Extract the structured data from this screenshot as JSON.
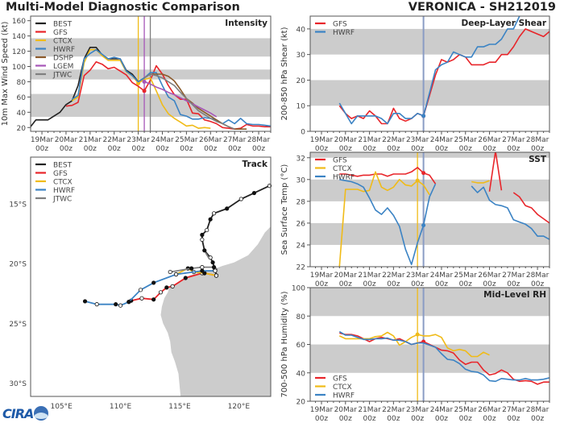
{
  "header": {
    "title": "Multi-Model Diagnostic Comparison",
    "storm": "VERONICA - SH212019",
    "logo_text": "CIRA"
  },
  "colors": {
    "BEST": "#222222",
    "GFS": "#e8252a",
    "CTCX": "#f0bb18",
    "HWRF": "#3b83c4",
    "DSHP": "#8b5a2b",
    "LGEM": "#a656b8",
    "JTWC": "#7f7f7f",
    "init_line": "#8a9cc4",
    "band": "#cccccc",
    "land": "#cccccc"
  },
  "time_ticks": [
    [
      "19Mar",
      "00z"
    ],
    [
      "20Mar",
      "00z"
    ],
    [
      "21Mar",
      "00z"
    ],
    [
      "22Mar",
      "00z"
    ],
    [
      "23Mar",
      "00z"
    ],
    [
      "24Mar",
      "00z"
    ],
    [
      "25Mar",
      "00z"
    ],
    [
      "26Mar",
      "00z"
    ],
    [
      "27Mar",
      "00z"
    ],
    [
      "28Mar",
      "00z"
    ]
  ],
  "chart_data": [
    {
      "id": "intensity",
      "type": "line",
      "title": "Intensity",
      "ylabel": "10m Max Wind Speed (kt)",
      "ylim": [
        15,
        166
      ],
      "yticks": [
        20,
        40,
        60,
        80,
        100,
        120,
        140,
        160
      ],
      "bands": [
        [
          34,
          64
        ],
        [
          83,
          96
        ],
        [
          113,
          137
        ]
      ],
      "legend": "top-left",
      "legend_entries": [
        "BEST",
        "GFS",
        "CTCX",
        "HWRF",
        "DSHP",
        "LGEM",
        "JTWC"
      ],
      "vlines": [
        {
          "model": "CTCX",
          "time": "23Mar 00z"
        },
        {
          "model": "LGEM",
          "time": "23Mar 06z"
        },
        {
          "model": "JTWC",
          "time": "23Mar 12z"
        }
      ],
      "series": [
        {
          "name": "BEST",
          "start": "18Mar 12z",
          "interval_h": 6,
          "values": [
            20,
            30,
            30,
            30,
            35,
            40,
            50,
            55,
            75,
            110,
            125,
            125,
            115,
            110,
            110,
            110,
            95,
            90,
            80,
            85,
            90
          ]
        },
        {
          "name": "GFS",
          "start": "20Mar 00z",
          "interval_h": 6,
          "values": [
            48,
            49,
            53,
            88,
            95,
            106,
            103,
            97,
            99,
            94,
            89,
            79,
            74,
            68,
            82,
            101,
            90,
            75,
            63,
            57,
            57,
            39,
            38,
            30,
            28,
            25,
            20,
            19,
            18,
            19,
            24,
            22,
            22,
            21,
            21
          ],
          "marker": "23Mar 06z"
        },
        {
          "name": "CTCX",
          "start": "20Mar 06z",
          "interval_h": 6,
          "values": [
            55,
            60,
            105,
            122,
            122,
            114,
            108,
            108,
            108,
            93,
            88,
            78,
            83,
            85,
            68,
            50,
            38,
            32,
            27,
            22,
            23,
            19,
            20,
            19
          ],
          "marker": "23Mar 00z"
        },
        {
          "name": "HWRF",
          "start": "20Mar 06z",
          "interval_h": 6,
          "values": [
            57,
            62,
            110,
            117,
            122,
            116,
            110,
            112,
            110,
            94,
            88,
            80,
            85,
            92,
            92,
            75,
            60,
            55,
            37,
            35,
            31,
            31,
            33,
            32,
            30,
            25,
            30,
            25,
            32,
            25,
            24,
            24,
            23,
            22
          ]
        },
        {
          "name": "DSHP",
          "start": "23Mar 12z",
          "interval_h": 6,
          "values": [
            90,
            90,
            90,
            87,
            81,
            70,
            58,
            52,
            45,
            40,
            35,
            30,
            25,
            21,
            18,
            18,
            18
          ]
        },
        {
          "name": "LGEM",
          "start": "23Mar 06z",
          "interval_h": 6,
          "values": [
            80,
            77,
            73,
            70,
            66,
            63,
            59,
            55,
            51,
            47,
            43,
            39,
            34
          ],
          "marker": "23Mar 06z"
        },
        {
          "name": "JTWC",
          "start": "23Mar 06z",
          "interval_h": 6,
          "values": [
            85,
            90,
            88,
            85,
            80,
            75,
            66,
            58,
            50,
            42,
            37,
            32,
            28,
            25,
            21,
            18
          ]
        }
      ]
    },
    {
      "id": "shear",
      "type": "line",
      "title": "Deep-Layer Shear",
      "ylabel": "200-850 hPa Shear (kt)",
      "ylim": [
        0,
        45
      ],
      "yticks": [
        0,
        10,
        20,
        30,
        40
      ],
      "bands": [
        [
          10,
          20
        ],
        [
          30,
          40
        ]
      ],
      "legend": "top-left",
      "legend_entries": [
        "GFS",
        "HWRF"
      ],
      "vlines": [
        {
          "model": "init_line",
          "time": "23Mar 06z"
        }
      ],
      "series": [
        {
          "name": "GFS",
          "start": "19Mar 18z",
          "interval_h": 6,
          "values": [
            10,
            7,
            5,
            6,
            5,
            8,
            6,
            3,
            3,
            9,
            5,
            4,
            5,
            7,
            6,
            14,
            22,
            28,
            27,
            28,
            30,
            29,
            26,
            26,
            26,
            27,
            27,
            30,
            30,
            33,
            37,
            40,
            39,
            38,
            37,
            39
          ],
          "marker": "23Mar 06z"
        },
        {
          "name": "HWRF",
          "start": "19Mar 18z",
          "interval_h": 6,
          "values": [
            11,
            7,
            3,
            6,
            6,
            6,
            6,
            5,
            3,
            7,
            7,
            5,
            5,
            7,
            6,
            15,
            24,
            26,
            27,
            31,
            30,
            29,
            29,
            33,
            33,
            34,
            34,
            36,
            40,
            40,
            45
          ],
          "marker": "23Mar 06z"
        }
      ]
    },
    {
      "id": "sst",
      "type": "line",
      "title": "SST",
      "ylabel": "Sea Surface Temp (°C)",
      "ylim": [
        22,
        32.5
      ],
      "yticks": [
        22,
        24,
        26,
        28,
        30,
        32
      ],
      "bands": [
        [
          24,
          26
        ],
        [
          28,
          30
        ],
        [
          32,
          33
        ]
      ],
      "legend": "top-left",
      "legend_entries": [
        "GFS",
        "CTCX",
        "HWRF"
      ],
      "vlines": [
        {
          "model": "CTCX",
          "time": "23Mar 00z"
        },
        {
          "model": "init_line",
          "time": "23Mar 06z"
        }
      ],
      "series": [
        {
          "name": "GFS",
          "start": "19Mar 18z",
          "interval_h": 6,
          "values": [
            30.5,
            30.5,
            30.4,
            30.3,
            30.4,
            30.4,
            30.5,
            30.5,
            30.3,
            30.5,
            30.5,
            30.5,
            30.7,
            31.1,
            30.6,
            30.4,
            29.6,
            null,
            null,
            null,
            null,
            null,
            null,
            null,
            null,
            28.9,
            32.6,
            29.0,
            null,
            28.8,
            28.4,
            27.6,
            27.4,
            26.8,
            26.4,
            26.0
          ],
          "marker": "23Mar 06z"
        },
        {
          "name": "CTCX",
          "start": "19Mar 18z",
          "interval_h": 6,
          "values": [
            22,
            29.1,
            29.1,
            29.1,
            28.9,
            29.0,
            30.7,
            29.3,
            29.0,
            29.3,
            30.0,
            29.5,
            29.4,
            29.9,
            29.5,
            28.6,
            null,
            null,
            null,
            null,
            null,
            null,
            29.8,
            29.7,
            29.7,
            29.9
          ],
          "marker": "23Mar 00z"
        },
        {
          "name": "HWRF",
          "start": "19Mar 18z",
          "interval_h": 6,
          "values": [
            30.0,
            29.9,
            29.8,
            29.6,
            29.3,
            28.3,
            27.2,
            26.8,
            27.4,
            26.7,
            25.7,
            23.6,
            22.2,
            24.2,
            25.8,
            28.4,
            29.6,
            null,
            null,
            null,
            null,
            null,
            29.4,
            28.8,
            29.3,
            28.1,
            27.7,
            27.6,
            27.4,
            26.3,
            26.1,
            25.9,
            25.5,
            24.8,
            24.8,
            24.5
          ],
          "marker": "23Mar 06z"
        }
      ]
    },
    {
      "id": "rh",
      "type": "line",
      "title": "Mid-Level RH",
      "ylabel": "700-500 hPa Humidity (%)",
      "ylim": [
        20,
        100
      ],
      "yticks": [
        20,
        40,
        60,
        80,
        100
      ],
      "bands": [
        [
          40,
          60
        ],
        [
          80,
          100
        ]
      ],
      "legend": "bottom-left",
      "legend_entries": [
        "GFS",
        "CTCX",
        "HWRF"
      ],
      "vlines": [
        {
          "model": "CTCX",
          "time": "23Mar 00z"
        },
        {
          "model": "init_line",
          "time": "23Mar 06z"
        }
      ],
      "series": [
        {
          "name": "GFS",
          "start": "19Mar 18z",
          "interval_h": 6,
          "values": [
            68,
            67,
            67,
            66,
            64,
            62,
            64,
            65,
            64,
            63,
            64,
            62,
            60,
            61,
            62,
            60,
            58,
            56,
            55.5,
            54,
            49,
            46,
            47.5,
            47.5,
            42,
            38.5,
            39.5,
            42,
            40,
            35.5,
            34,
            34.5,
            34,
            32,
            33.5,
            33.5
          ],
          "marker": "23Mar 06z"
        },
        {
          "name": "CTCX",
          "start": "19Mar 18z",
          "interval_h": 6,
          "values": [
            66,
            64,
            64,
            64,
            64,
            64,
            65.5,
            66,
            68.5,
            66,
            59.5,
            62,
            65,
            67,
            66,
            66,
            67,
            65,
            57.5,
            55.5,
            56.5,
            55.5,
            51.5,
            51.5,
            54.5,
            52.5
          ],
          "marker": "23Mar 00z"
        },
        {
          "name": "HWRF",
          "start": "19Mar 18z",
          "interval_h": 6,
          "values": [
            69,
            66.5,
            66.5,
            65,
            63.5,
            63.5,
            64,
            64,
            64.5,
            63,
            63,
            62,
            60,
            61,
            61,
            59.5,
            58,
            53.5,
            49.5,
            49,
            46.5,
            42.5,
            41,
            40.5,
            38.5,
            34.5,
            34,
            36,
            35.5,
            35,
            35,
            36,
            35,
            35,
            35.5,
            36.5
          ]
        }
      ]
    },
    {
      "id": "track",
      "type": "line",
      "title": "Track",
      "xlim": [
        102.4,
        122.7
      ],
      "ylim": [
        -31.1,
        -11.1
      ],
      "xticks": [
        {
          "v": 105,
          "label": "105°E"
        },
        {
          "v": 110,
          "label": "110°E"
        },
        {
          "v": 115,
          "label": "115°E"
        },
        {
          "v": 120,
          "label": "120°E"
        }
      ],
      "yticks": [
        {
          "v": -15,
          "label": "15°S"
        },
        {
          "v": -20,
          "label": "20°S"
        },
        {
          "v": -25,
          "label": "25°S"
        },
        {
          "v": -30,
          "label": "30°S"
        }
      ],
      "legend": "top-left",
      "legend_entries": [
        "BEST",
        "GFS",
        "CTCX",
        "HWRF",
        "JTWC"
      ],
      "series": [
        {
          "name": "BEST",
          "points": [
            [
              122.6,
              -13.5
            ],
            [
              121.3,
              -14.1
            ],
            [
              120.2,
              -14.6
            ],
            [
              119.0,
              -15.4
            ],
            [
              117.9,
              -15.8
            ],
            [
              117.6,
              -16.3
            ],
            [
              117.3,
              -17.2
            ],
            [
              116.9,
              -17.6
            ],
            [
              116.9,
              -18.0
            ],
            [
              117.1,
              -18.9
            ],
            [
              117.6,
              -19.5
            ],
            [
              117.8,
              -19.9
            ],
            [
              118.0,
              -20.5
            ],
            [
              118.1,
              -21.0
            ]
          ]
        },
        {
          "name": "GFS",
          "points": [
            [
              118.1,
              -21.0
            ],
            [
              117.1,
              -20.8
            ],
            [
              116.9,
              -20.8
            ],
            [
              115.5,
              -21.2
            ],
            [
              114.4,
              -21.9
            ],
            [
              113.9,
              -22.0
            ],
            [
              113.4,
              -22.4
            ],
            [
              112.8,
              -23.0
            ],
            [
              111.8,
              -22.9
            ],
            [
              110.9,
              -23.1
            ],
            [
              110.7,
              -23.2
            ]
          ]
        },
        {
          "name": "CTCX",
          "points": [
            [
              118.1,
              -21.0
            ],
            [
              117.1,
              -20.8
            ],
            [
              116.2,
              -20.7
            ],
            [
              115.7,
              -20.4
            ],
            [
              114.7,
              -20.9
            ]
          ]
        },
        {
          "name": "HWRF",
          "points": [
            [
              118.0,
              -20.6
            ],
            [
              116.9,
              -20.6
            ],
            [
              114.7,
              -20.9
            ],
            [
              112.8,
              -21.6
            ],
            [
              111.7,
              -22.2
            ],
            [
              110.7,
              -23.2
            ],
            [
              110.0,
              -23.5
            ],
            [
              109.6,
              -23.4
            ],
            [
              108.0,
              -23.4
            ],
            [
              107.0,
              -23.15
            ]
          ]
        },
        {
          "name": "JTWC",
          "points": [
            [
              118.0,
              -20.6
            ],
            [
              117.9,
              -20.3
            ],
            [
              116.9,
              -20.3
            ],
            [
              116.0,
              -20.4
            ],
            [
              114.2,
              -20.7
            ]
          ]
        },
        {
          "name": "JTWC",
          "points": [
            [
              117.2,
              -19.1
            ],
            [
              117.5,
              -19.6
            ]
          ]
        }
      ]
    }
  ]
}
